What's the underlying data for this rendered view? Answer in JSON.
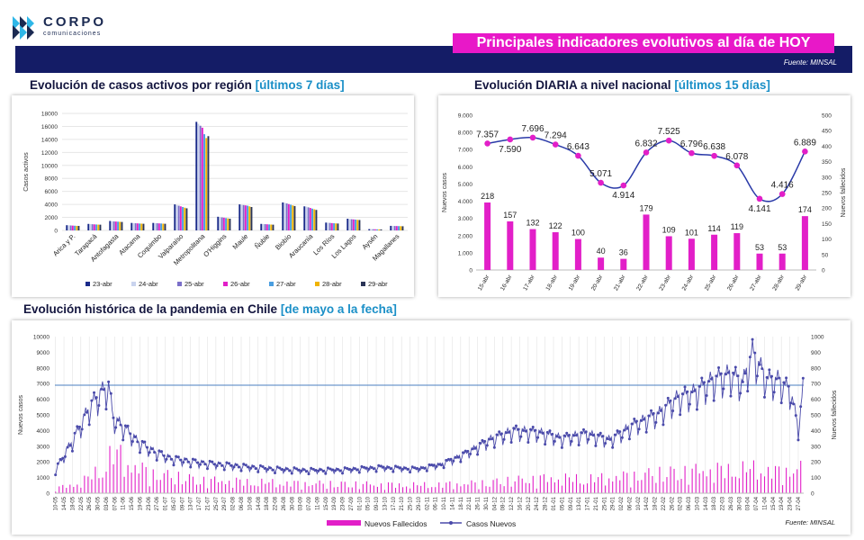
{
  "header": {
    "logo_text": "CORPO",
    "logo_sub": "comunicaciones",
    "title": "Principales indicadores evolutivos al día de HOY",
    "source": "Fuente: MINSAL",
    "brand_color": "#141c66",
    "accent_color": "#e818c8"
  },
  "sections": {
    "regional_title": "Evolución de casos activos por región",
    "regional_hl": "[últimos 7 días]",
    "daily_title": "Evolución DIARIA  a nivel nacional",
    "daily_hl": "[últimos 15 días]",
    "hist_title": "Evolución histórica de la pandemia en Chile",
    "hist_hl": "[de mayo a la fecha]"
  },
  "chart_data": [
    {
      "type": "bar",
      "title": "Evolución de casos activos por región [últimos 7 días]",
      "ylabel": "Casos activos",
      "ylim": [
        0,
        18000
      ],
      "yticks": [
        0,
        2000,
        4000,
        6000,
        8000,
        10000,
        12000,
        14000,
        16000,
        18000
      ],
      "categories": [
        "Arica y P.",
        "Tarapacá",
        "Antofagasta",
        "Atacama",
        "Coquimbo",
        "Valparaíso",
        "Metropolitana",
        "O'Higgins",
        "Maule",
        "Ñuble",
        "Biobío",
        "Araucanía",
        "Los Ríos",
        "Los Lagos",
        "Aysén",
        "Magallanes"
      ],
      "series": [
        {
          "name": "23-abr",
          "color": "#1a2a8a",
          "values": [
            800,
            1000,
            1450,
            1150,
            1150,
            4000,
            16700,
            2100,
            4000,
            1000,
            4300,
            3700,
            1200,
            1800,
            200,
            700
          ]
        },
        {
          "name": "24-abr",
          "color": "#c9d3ee",
          "values": [
            780,
            980,
            1400,
            1120,
            1120,
            3900,
            16400,
            2050,
            3950,
            980,
            4250,
            3650,
            1180,
            1750,
            190,
            690
          ]
        },
        {
          "name": "25-abr",
          "color": "#7b6fc9",
          "values": [
            760,
            950,
            1380,
            1100,
            1100,
            3800,
            16100,
            2000,
            3900,
            960,
            4150,
            3550,
            1150,
            1720,
            180,
            680
          ]
        },
        {
          "name": "26-abr",
          "color": "#e21fc8",
          "values": [
            740,
            930,
            1360,
            1080,
            1080,
            3700,
            15800,
            1950,
            3850,
            940,
            4050,
            3450,
            1120,
            1690,
            170,
            670
          ]
        },
        {
          "name": "27-abr",
          "color": "#4a9ee0",
          "values": [
            720,
            910,
            1340,
            1060,
            1060,
            3600,
            14800,
            1900,
            3800,
            920,
            3950,
            3350,
            1100,
            1660,
            160,
            660
          ]
        },
        {
          "name": "28-abr",
          "color": "#f0b400",
          "values": [
            700,
            890,
            1320,
            1040,
            1040,
            3500,
            14200,
            1850,
            3700,
            900,
            3850,
            3250,
            1080,
            1630,
            150,
            650
          ]
        },
        {
          "name": "29-abr",
          "color": "#2a3456",
          "values": [
            690,
            880,
            1300,
            1020,
            1020,
            3400,
            14500,
            1800,
            3600,
            880,
            3750,
            3150,
            1060,
            1600,
            150,
            640
          ]
        }
      ]
    },
    {
      "type": "bar+line",
      "title": "Evolución DIARIA a nivel nacional [últimos 15 días]",
      "ylabel": "Nuevos casos",
      "y2label": "Nuevos fallecidos",
      "ylim": [
        0,
        9000
      ],
      "y2lim": [
        0,
        500
      ],
      "yticks": [
        "0",
        "1.000",
        "2.000",
        "3.000",
        "4.000",
        "5.000",
        "6.000",
        "7.000",
        "8.000",
        "9.000"
      ],
      "y2ticks": [
        "0",
        "50",
        "100",
        "150",
        "200",
        "250",
        "300",
        "350",
        "400",
        "450",
        "500"
      ],
      "categories": [
        "15-abr",
        "16-abr",
        "17-abr",
        "18-abr",
        "19-abr",
        "20-abr",
        "21-abr",
        "22-abr",
        "23-abr",
        "24-abr",
        "25-abr",
        "26-abr",
        "27-abr",
        "28-abr",
        "29-abr"
      ],
      "deaths": [
        218,
        157,
        132,
        122,
        100,
        40,
        36,
        179,
        109,
        101,
        114,
        119,
        53,
        53,
        174
      ],
      "cases": [
        7357,
        7590,
        7696,
        7294,
        6643,
        5071,
        4914,
        6832,
        7525,
        6796,
        6638,
        6078,
        4141,
        4416,
        6889
      ],
      "case_labels": [
        "7.357",
        "7.590",
        "7.696",
        "7.294",
        "6.643",
        "5.071",
        "4.914",
        "6.832",
        "7.525",
        "6.796",
        "6.638",
        "6.078",
        "4.141",
        "4.416",
        "6.889"
      ],
      "bar_color": "#e21fc8",
      "line_color": "#2a3aa8"
    },
    {
      "type": "bar+line",
      "title": "Evolución histórica de la pandemia en Chile [de mayo a la fecha]",
      "ylabel": "Nuevos casos",
      "y2label": "Nuevos fallecidos",
      "ylim": [
        0,
        10000
      ],
      "y2lim": [
        0,
        1000
      ],
      "yticks": [
        0,
        1000,
        2000,
        3000,
        4000,
        5000,
        6000,
        7000,
        8000,
        9000,
        10000
      ],
      "y2ticks": [
        0,
        100,
        200,
        300,
        400,
        500,
        600,
        700,
        800,
        900,
        1000
      ],
      "reference_line": 6900,
      "legend": [
        "Nuevos Fallecidos",
        "Casos Nuevos"
      ],
      "source": "Fuente: MINSAL",
      "x_labels": [
        "10-05",
        "14-05",
        "18-05",
        "22-05",
        "26-05",
        "30-05",
        "03-06",
        "07-06",
        "11-06",
        "15-06",
        "19-06",
        "23-06",
        "27-06",
        "01-07",
        "05-07",
        "09-07",
        "13-07",
        "17-07",
        "21-07",
        "25-07",
        "29-07",
        "02-08",
        "06-08",
        "10-08",
        "14-08",
        "18-08",
        "22-08",
        "26-08",
        "30-08",
        "03-09",
        "07-09",
        "11-09",
        "15-09",
        "19-09",
        "23-09",
        "27-09",
        "01-10",
        "05-10",
        "09-10",
        "13-10",
        "17-10",
        "21-10",
        "25-10",
        "29-10",
        "02-11",
        "06-11",
        "10-11",
        "14-11",
        "18-11",
        "22-11",
        "26-11",
        "30-11",
        "04-12",
        "08-12",
        "12-12",
        "16-12",
        "20-12",
        "24-12",
        "28-12",
        "01-01",
        "05-01",
        "09-01",
        "13-01",
        "17-01",
        "21-01",
        "25-01",
        "29-01",
        "02-02",
        "06-02",
        "10-02",
        "14-02",
        "18-02",
        "22-02",
        "26-02",
        "02-03",
        "06-03",
        "10-03",
        "14-03",
        "18-03",
        "22-03",
        "26-03",
        "30-03",
        "03-04",
        "07-04",
        "11-04",
        "15-04",
        "19-04",
        "23-04",
        "27-04"
      ],
      "cases_anchors": [
        [
          0,
          1500
        ],
        [
          8,
          2600
        ],
        [
          18,
          4000
        ],
        [
          28,
          5600
        ],
        [
          38,
          6600
        ],
        [
          44,
          7000
        ],
        [
          48,
          4900
        ],
        [
          58,
          4200
        ],
        [
          68,
          3400
        ],
        [
          80,
          2800
        ],
        [
          95,
          2300
        ],
        [
          120,
          2000
        ],
        [
          150,
          1800
        ],
        [
          180,
          1600
        ],
        [
          210,
          1500
        ],
        [
          240,
          1550
        ],
        [
          270,
          1700
        ],
        [
          300,
          1600
        ],
        [
          320,
          1900
        ],
        [
          340,
          2600
        ],
        [
          360,
          3500
        ],
        [
          380,
          4100
        ],
        [
          400,
          4000
        ],
        [
          420,
          3600
        ],
        [
          440,
          3900
        ],
        [
          460,
          3500
        ],
        [
          480,
          4500
        ],
        [
          500,
          5200
        ],
        [
          515,
          6200
        ],
        [
          530,
          6600
        ],
        [
          545,
          7400
        ],
        [
          560,
          7800
        ],
        [
          570,
          7200
        ],
        [
          578,
          9200
        ],
        [
          590,
          7400
        ],
        [
          600,
          7400
        ],
        [
          610,
          6600
        ],
        [
          616,
          4200
        ],
        [
          620,
          6900
        ]
      ],
      "deaths_anchors": [
        [
          0,
          30
        ],
        [
          20,
          60
        ],
        [
          38,
          150
        ],
        [
          44,
          220
        ],
        [
          50,
          250
        ],
        [
          60,
          180
        ],
        [
          80,
          120
        ],
        [
          120,
          80
        ],
        [
          200,
          60
        ],
        [
          300,
          50
        ],
        [
          350,
          60
        ],
        [
          400,
          90
        ],
        [
          450,
          90
        ],
        [
          500,
          120
        ],
        [
          540,
          140
        ],
        [
          580,
          150
        ],
        [
          600,
          130
        ],
        [
          620,
          150
        ]
      ],
      "bar_color": "#e21fc8",
      "line_color": "#4a4aaa"
    }
  ]
}
